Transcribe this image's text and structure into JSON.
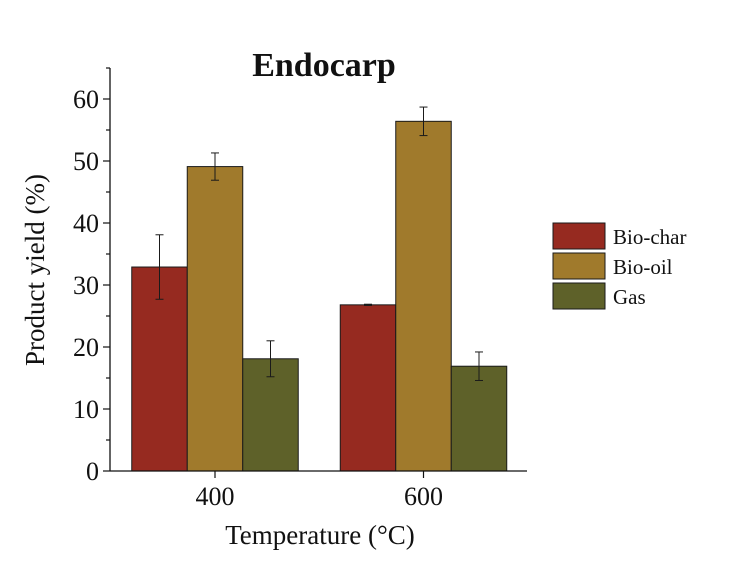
{
  "chart_data": {
    "type": "bar",
    "title": "Endocarp",
    "xlabel": "Temperature (°C)",
    "ylabel": "Product yield (%)",
    "ylim": [
      0,
      65
    ],
    "yticks": [
      0,
      10,
      20,
      30,
      40,
      50,
      60
    ],
    "ytick_labels": [
      "0",
      "10",
      "20",
      "30",
      "40",
      "50",
      "60"
    ],
    "categories": [
      "400",
      "600"
    ],
    "series": [
      {
        "name": "Bio-char",
        "color": "#962a20",
        "values": [
          32.9,
          26.8
        ],
        "errors": [
          5.2,
          0.1
        ]
      },
      {
        "name": "Bio-oil",
        "color": "#a07a2c",
        "values": [
          49.1,
          56.4
        ],
        "errors": [
          2.2,
          2.3
        ]
      },
      {
        "name": "Gas",
        "color": "#5e6129",
        "values": [
          18.1,
          16.9
        ],
        "errors": [
          2.9,
          2.3
        ]
      }
    ],
    "legend_position": "right",
    "grid": false
  }
}
